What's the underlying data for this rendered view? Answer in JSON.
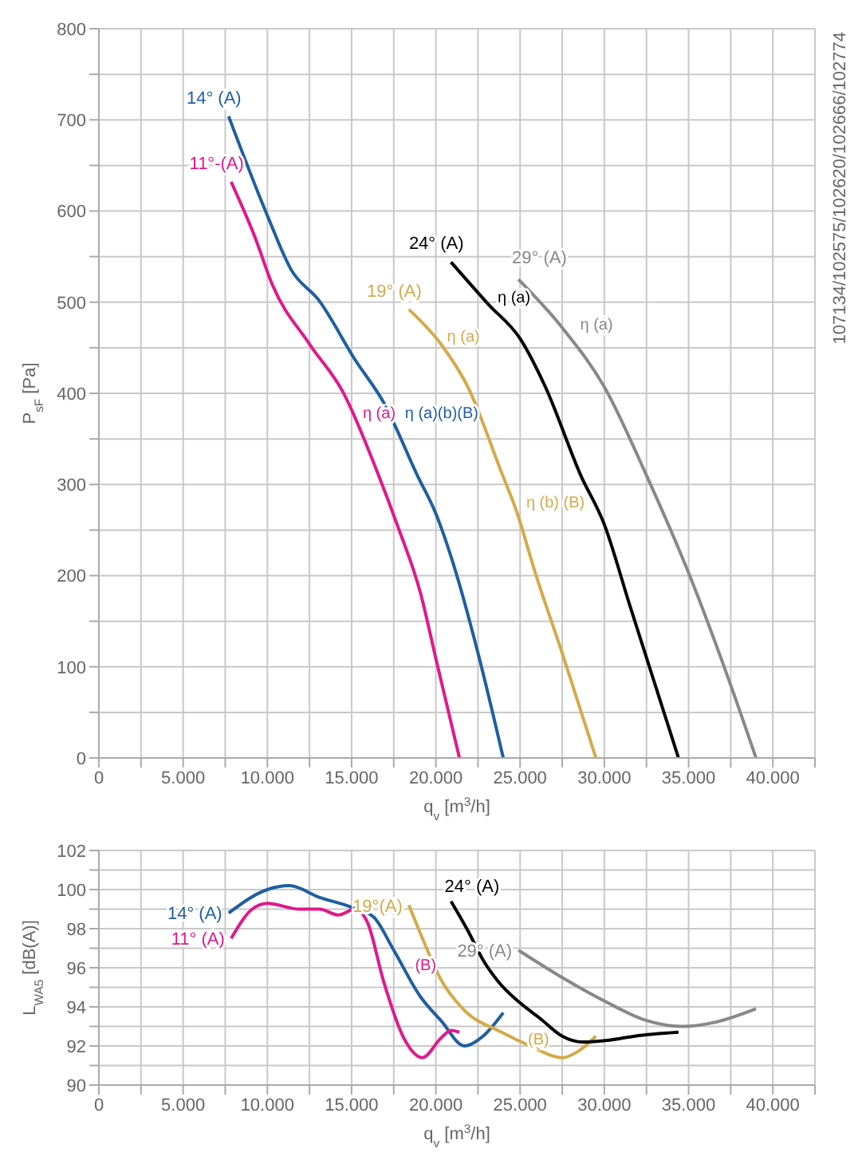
{
  "chart_data": [
    {
      "type": "line",
      "xlabel": "q$_{v}$ [m$^{3}$/h]",
      "ylabel": "P$_{sF}$ [Pa]",
      "grid": true,
      "line_style": "solid",
      "xlim": [
        0,
        42500
      ],
      "xticks": [
        0,
        {
          "value": 2500,
          "label": null
        },
        {
          "value": 5000,
          "label": "5.000"
        },
        {
          "value": 7500,
          "label": null
        },
        {
          "value": 10000,
          "label": "10.000"
        },
        {
          "value": 12500,
          "label": null
        },
        {
          "value": 15000,
          "label": "15.000"
        },
        {
          "value": 17500,
          "label": null
        },
        {
          "value": 20000,
          "label": "20.000"
        },
        {
          "value": 22500,
          "label": null
        },
        {
          "value": 25000,
          "label": "25.000"
        },
        {
          "value": 27500,
          "label": null
        },
        {
          "value": 30000,
          "label": "30.000"
        },
        {
          "value": 32500,
          "label": null
        },
        {
          "value": 35000,
          "label": "35.000"
        },
        {
          "value": 37500,
          "label": null
        },
        {
          "value": 40000,
          "label": "40.000"
        },
        {
          "value": 42500,
          "label": null
        }
      ],
      "ylim": [
        0,
        800
      ],
      "yticks": [
        0,
        {
          "value": 50,
          "label": null
        },
        100,
        {
          "value": 150,
          "label": null
        },
        200,
        {
          "value": 250,
          "label": null
        },
        300,
        {
          "value": 350,
          "label": null
        },
        400,
        {
          "value": 450,
          "label": null
        },
        500,
        {
          "value": 550,
          "label": null
        },
        600,
        {
          "value": 650,
          "label": null
        },
        700,
        {
          "value": 750,
          "label": null
        },
        800
      ],
      "series": [
        {
          "name": "14° (A)",
          "color": "#1f5fa0",
          "x": [
            7700,
            10000,
            11400,
            13100,
            15200,
            16900,
            18900,
            20000,
            21200,
            22500,
            24000
          ],
          "values": [
            704,
            595,
            536,
            501,
            437,
            390,
            310,
            268,
            203,
            115,
            0
          ]
        },
        {
          "name": "11°-(A)",
          "color": "#e0198c",
          "x": [
            7850,
            9250,
            10300,
            12500,
            14500,
            16600,
            17700,
            19100,
            20000,
            21400
          ],
          "values": [
            632,
            572,
            519,
            454,
            401,
            310,
            256,
            180,
            109,
            0
          ]
        },
        {
          "name": "19° (A)",
          "color": "#d4aa4a",
          "x": [
            18400,
            20300,
            21900,
            23900,
            24800,
            25900,
            27500,
            29500
          ],
          "values": [
            492,
            454,
            407,
            313,
            270,
            203,
            115,
            0
          ]
        },
        {
          "name": "24° (A)",
          "color": "#000000",
          "x": [
            20900,
            23100,
            25000,
            26500,
            28600,
            30000,
            31500,
            34400
          ],
          "values": [
            544,
            498,
            460,
            407,
            310,
            256,
            168,
            0
          ]
        },
        {
          "name": "29° (A)",
          "color": "#888888",
          "x": [
            24900,
            27500,
            30000,
            32500,
            35000,
            37400,
            39000
          ],
          "values": [
            525,
            472,
            407,
            310,
            203,
            85,
            0
          ]
        }
      ],
      "annotations": [
        {
          "text": "η (a)",
          "x": 15000,
          "y": 371
        },
        {
          "text": "η (a)(b)(B)",
          "x": 17500,
          "y": 371
        },
        {
          "text": "η (a)",
          "x": 20000,
          "y": 455
        },
        {
          "text": "η (a)",
          "x": 23000,
          "y": 498
        },
        {
          "text": "η (a)",
          "x": 27900,
          "y": 468
        },
        {
          "text": "η (b) (B)",
          "x": 24700,
          "y": 273
        },
        "107134/102575/102620/102666/102774"
      ]
    },
    {
      "type": "line",
      "xlabel": "q$_{v}$ [m$^{3}$/h]",
      "ylabel": "L$_{WA5}$ [dB(A)]",
      "grid": true,
      "line_style": "solid",
      "xlim": [
        0,
        42500
      ],
      "xticks": [
        0,
        {
          "value": 2500,
          "label": null
        },
        {
          "value": 5000,
          "label": "5.000"
        },
        {
          "value": 7500,
          "label": null
        },
        {
          "value": 10000,
          "label": "10.000"
        },
        {
          "value": 12500,
          "label": null
        },
        {
          "value": 15000,
          "label": "15.000"
        },
        {
          "value": 17500,
          "label": null
        },
        {
          "value": 20000,
          "label": "20.000"
        },
        {
          "value": 22500,
          "label": null
        },
        {
          "value": 25000,
          "label": "25.000"
        },
        {
          "value": 27500,
          "label": null
        },
        {
          "value": 30000,
          "label": "30.000"
        },
        {
          "value": 32500,
          "label": null
        },
        {
          "value": 35000,
          "label": "35.000"
        },
        {
          "value": 37500,
          "label": null
        },
        {
          "value": 40000,
          "label": "40.000"
        },
        {
          "value": 42500,
          "label": null
        }
      ],
      "ylim": [
        90,
        102
      ],
      "yticks": [
        90,
        {
          "value": 91,
          "label": null
        },
        92,
        {
          "value": 93,
          "label": null
        },
        94,
        {
          "value": 95,
          "label": null
        },
        96,
        {
          "value": 97,
          "label": null
        },
        98,
        {
          "value": 99,
          "label": null
        },
        100,
        {
          "value": 101,
          "label": null
        },
        102
      ],
      "series": [
        {
          "name": "14° (A)",
          "color": "#1f5fa0",
          "x": [
            7700,
            10000,
            11300,
            13100,
            15000,
            16300,
            17500,
            19100,
            20300,
            21700,
            22800,
            24000
          ],
          "values": [
            98.8,
            100.0,
            100.2,
            99.6,
            99.1,
            98.6,
            96.9,
            94.5,
            93.3,
            92.0,
            92.5,
            93.7
          ]
        },
        {
          "name": "11° (A)",
          "color": "#e0198c",
          "x": [
            7850,
            9100,
            10000,
            11900,
            13100,
            14200,
            15200,
            15950,
            16900,
            18100,
            19200,
            20300,
            20900,
            21400
          ],
          "values": [
            97.5,
            99.0,
            99.3,
            99.0,
            99.0,
            98.7,
            99.0,
            98.3,
            95.3,
            92.4,
            91.4,
            92.4,
            92.8,
            92.7
          ]
        },
        {
          "name": "19°(A)",
          "color": "#d4aa4a",
          "x": [
            18400,
            19400,
            20300,
            21600,
            23900,
            25600,
            27500,
            28400,
            29500
          ],
          "values": [
            99.2,
            97.1,
            95.4,
            93.9,
            92.7,
            92.0,
            91.4,
            91.7,
            92.5
          ]
        },
        {
          "name": "24° (A)",
          "color": "#000000",
          "x": [
            20900,
            21900,
            22800,
            23700,
            25000,
            26200,
            27500,
            28700,
            30300,
            31800,
            34400
          ],
          "values": [
            99.4,
            97.9,
            96.4,
            95.3,
            94.2,
            93.4,
            92.5,
            92.2,
            92.3,
            92.5,
            92.7
          ]
        },
        {
          "name": "29° (A)",
          "color": "#888888",
          "x": [
            24900,
            27500,
            30000,
            32500,
            34600,
            36500,
            39000
          ],
          "values": [
            96.9,
            95.5,
            94.3,
            93.3,
            93.0,
            93.2,
            93.9
          ]
        }
      ],
      "annotations": [
        {
          "text": "(B)",
          "x": 18100,
          "y": 95.8
        },
        {
          "text": "(B)",
          "x": 24800,
          "y": 92.0
        }
      ]
    }
  ]
}
